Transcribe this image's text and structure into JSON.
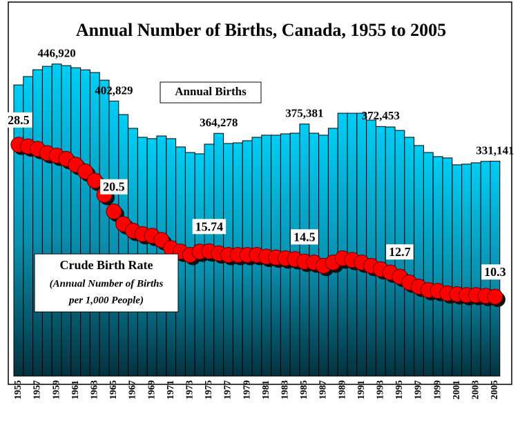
{
  "chart_data": {
    "type": "bar",
    "title": "Annual Number of Births, Canada, 1955 to 2005",
    "categories": [
      1955,
      null,
      1957,
      null,
      1959,
      null,
      1961,
      null,
      1963,
      null,
      1965,
      null,
      1967,
      null,
      1969,
      null,
      1971,
      null,
      1973,
      null,
      1975,
      null,
      1977,
      null,
      1979,
      null,
      1981,
      null,
      1983,
      null,
      1985,
      null,
      1987,
      null,
      1989,
      null,
      1991,
      null,
      1993,
      null,
      1995,
      null,
      1997,
      null,
      1999,
      null,
      2001,
      null,
      2003,
      null,
      2005
    ],
    "ylim": [
      75000,
      515000
    ],
    "y2lim": [
      0.8,
      45
    ],
    "series": [
      {
        "name": "Annual Births",
        "color": "#00c8f0",
        "values": [
          422000,
          432000,
          440100,
          444200,
          446920,
          445000,
          442500,
          440000,
          436800,
          427700,
          402829,
          386700,
          370300,
          359600,
          358000,
          361200,
          358000,
          348100,
          341500,
          339900,
          351400,
          364278,
          352200,
          353000,
          355500,
          359600,
          362100,
          362100,
          363700,
          364500,
          375381,
          364500,
          362100,
          370300,
          388300,
          388300,
          388300,
          380100,
          372453,
          371900,
          367800,
          359600,
          349800,
          341500,
          336600,
          335000,
          326800,
          327600,
          329200,
          330900,
          331141
        ],
        "value_labels": [
          null,
          null,
          null,
          null,
          "446,920",
          null,
          null,
          null,
          null,
          null,
          "402,829",
          null,
          null,
          null,
          null,
          null,
          null,
          null,
          null,
          null,
          null,
          "364,278",
          null,
          null,
          null,
          null,
          null,
          null,
          null,
          null,
          "375,381",
          null,
          null,
          null,
          null,
          null,
          null,
          null,
          "372,453",
          null,
          null,
          null,
          null,
          null,
          null,
          null,
          null,
          null,
          null,
          null,
          "331,141"
        ]
      },
      {
        "name": "Crude Birth Rate",
        "color": "#ff0000",
        "axis": "y2",
        "values": [
          28.5,
          28.3,
          28.0,
          27.5,
          27.2,
          26.8,
          26.1,
          25.3,
          24.2,
          22.5,
          20.5,
          19.0,
          18.2,
          17.8,
          17.6,
          17.1,
          16.1,
          15.7,
          15.3,
          15.7,
          15.74,
          15.5,
          15.3,
          15.3,
          15.3,
          15.3,
          15.1,
          15.0,
          14.9,
          14.8,
          14.5,
          14.4,
          14.0,
          14.4,
          14.9,
          14.7,
          14.4,
          14.0,
          13.6,
          13.2,
          12.7,
          12.0,
          11.5,
          11.1,
          11.0,
          10.7,
          10.6,
          10.5,
          10.5,
          10.4,
          10.3
        ],
        "value_labels": [
          "28.5",
          null,
          null,
          null,
          null,
          null,
          null,
          null,
          null,
          null,
          "20.5",
          null,
          null,
          null,
          null,
          null,
          null,
          null,
          null,
          null,
          "15.74",
          null,
          null,
          null,
          null,
          null,
          null,
          null,
          null,
          null,
          "14.5",
          null,
          null,
          null,
          null,
          null,
          null,
          null,
          null,
          null,
          "12.7",
          null,
          null,
          null,
          null,
          null,
          null,
          null,
          null,
          null,
          "10.3"
        ]
      }
    ],
    "annotations": [
      "(Annual Number of Births",
      "per 1,000 People)"
    ]
  }
}
